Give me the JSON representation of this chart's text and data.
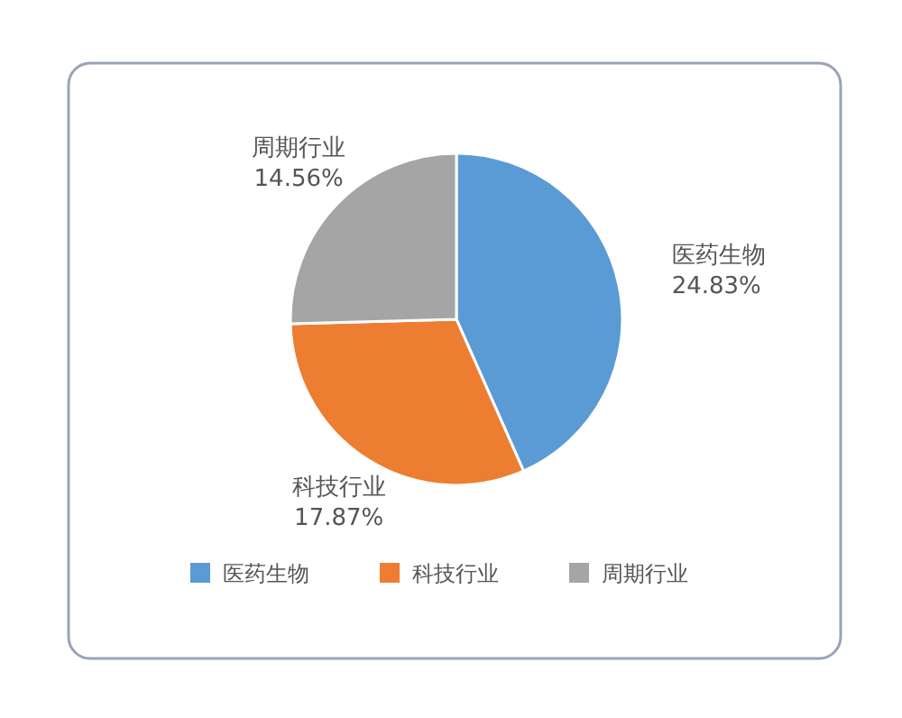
{
  "chart_data": {
    "type": "pie",
    "categories": [
      "医药生物",
      "科技行业",
      "周期行业"
    ],
    "values": [
      24.83,
      17.87,
      14.56
    ],
    "value_labels": [
      "24.83%",
      "17.87%",
      "14.56%"
    ],
    "colors": [
      "#5b9bd5",
      "#ed7d31",
      "#a5a5a5"
    ],
    "legend": "bottom"
  }
}
